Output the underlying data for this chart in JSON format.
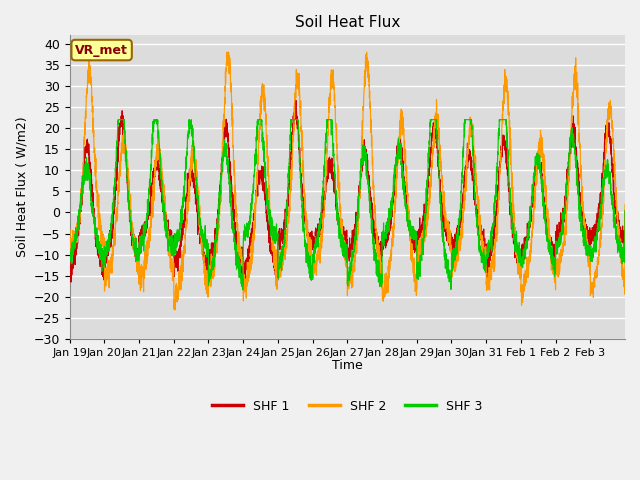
{
  "title": "Soil Heat Flux",
  "ylabel": "Soil Heat Flux ( W/m2)",
  "xlabel": "Time",
  "xlabels": [
    "Jan 19",
    "Jan 20",
    "Jan 21",
    "Jan 22",
    "Jan 23",
    "Jan 24",
    "Jan 25",
    "Jan 26",
    "Jan 27",
    "Jan 28",
    "Jan 29",
    "Jan 30",
    "Jan 31",
    "Feb 1",
    "Feb 2",
    "Feb 3"
  ],
  "ylim": [
    -30,
    42
  ],
  "yticks": [
    -30,
    -25,
    -20,
    -15,
    -10,
    -5,
    0,
    5,
    10,
    15,
    20,
    25,
    30,
    35,
    40
  ],
  "color_shf1": "#cc0000",
  "color_shf2": "#ff9900",
  "color_shf3": "#00cc00",
  "bg_color": "#dcdcdc",
  "grid_color": "#ffffff",
  "fig_bg": "#f0f0f0",
  "annotation_text": "VR_met",
  "annotation_bg": "#ffff99",
  "annotation_border": "#996600",
  "legend_labels": [
    "SHF 1",
    "SHF 2",
    "SHF 3"
  ],
  "n_points": 3840,
  "days": 16
}
